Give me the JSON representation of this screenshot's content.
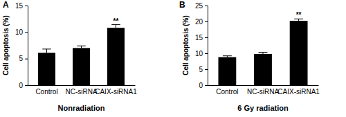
{
  "chart_data": [
    {
      "type": "bar",
      "title": "A",
      "x_label": "Nonradiation",
      "y_label": "Cell apoptosis (%)",
      "categories": [
        "Control",
        "NC-siRNA",
        "CAIX-siRNA1"
      ],
      "values": [
        6.1,
        7.0,
        10.8
      ],
      "errors": [
        0.7,
        0.4,
        0.6
      ],
      "color": "#000000",
      "ylim": [
        0,
        15
      ],
      "yticks": [
        0,
        5,
        10,
        15
      ],
      "grid": false,
      "annotations": [
        {
          "text": "**",
          "x": "CAIX-siRNA1"
        }
      ]
    },
    {
      "type": "bar",
      "title": "B",
      "x_label": "6 Gy radiation",
      "y_label": "Cell apoptosis (%)",
      "categories": [
        "Control",
        "NC-siRNA",
        "CAIX-siRNA1"
      ],
      "values": [
        8.8,
        9.8,
        20.2
      ],
      "errors": [
        0.4,
        0.5,
        0.6
      ],
      "color": "#000000",
      "ylim": [
        0,
        25
      ],
      "yticks": [
        0,
        5,
        10,
        15,
        20,
        25
      ],
      "grid": false,
      "annotations": [
        {
          "text": "**",
          "x": "CAIX-siRNA1"
        }
      ]
    }
  ]
}
